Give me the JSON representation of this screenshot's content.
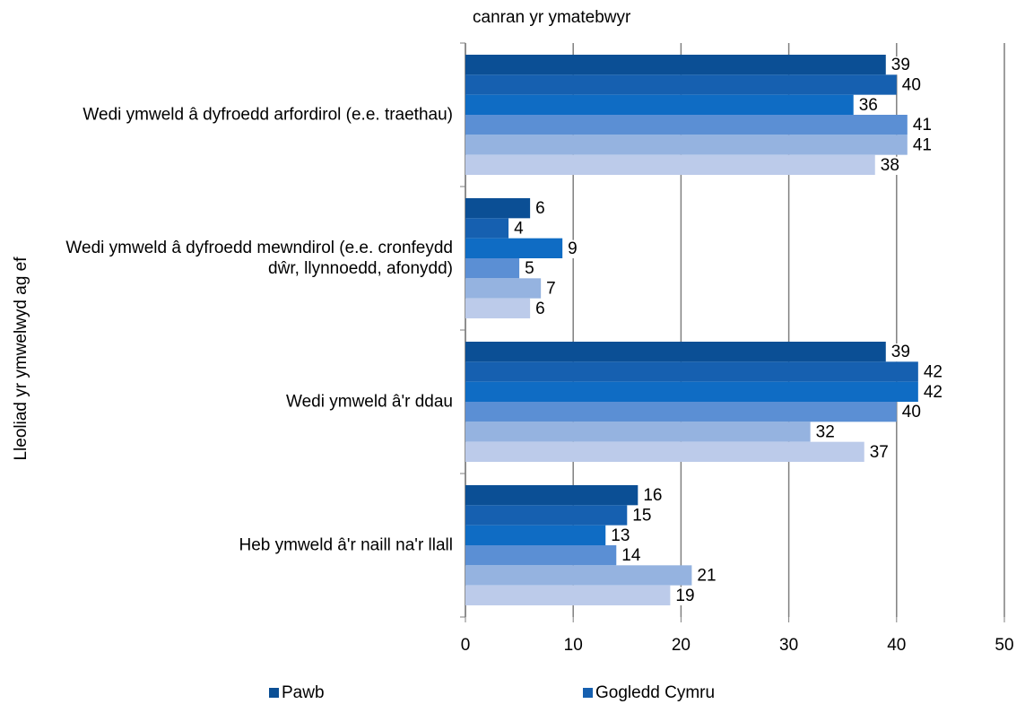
{
  "chart_data": {
    "type": "bar",
    "orientation": "horizontal",
    "x_label": "canran yr ymatebwyr",
    "y_label": "Lleoliad yr ymwelwyd ag ef",
    "categories": [
      "Wedi ymweld â dyfroedd arfordirol (e.e. traethau)",
      "Wedi ymweld â dyfroedd mewndirol (e.e. cronfeydd dŵr, llynnoedd, afonydd)",
      "Wedi ymweld â'r ddau",
      "Heb ymweld â'r naill na'r llall"
    ],
    "series": [
      {
        "name": "Pawb",
        "color": "#0b4f95",
        "values": [
          39,
          6,
          39,
          16
        ]
      },
      {
        "name": "Gogledd Cymru",
        "color": "#1660b0",
        "values": [
          40,
          4,
          42,
          15
        ]
      },
      {
        "color": "#0f6cc4",
        "values": [
          36,
          9,
          42,
          13
        ]
      },
      {
        "color": "#5b8fd4",
        "values": [
          41,
          5,
          40,
          14
        ]
      },
      {
        "color": "#95b3e0",
        "values": [
          41,
          7,
          32,
          21
        ]
      },
      {
        "color": "#bccbea",
        "values": [
          38,
          6,
          37,
          19
        ]
      }
    ],
    "xlim": [
      0,
      50
    ],
    "xticks": [
      0,
      10,
      20,
      30,
      40,
      50
    ],
    "grid": true
  }
}
